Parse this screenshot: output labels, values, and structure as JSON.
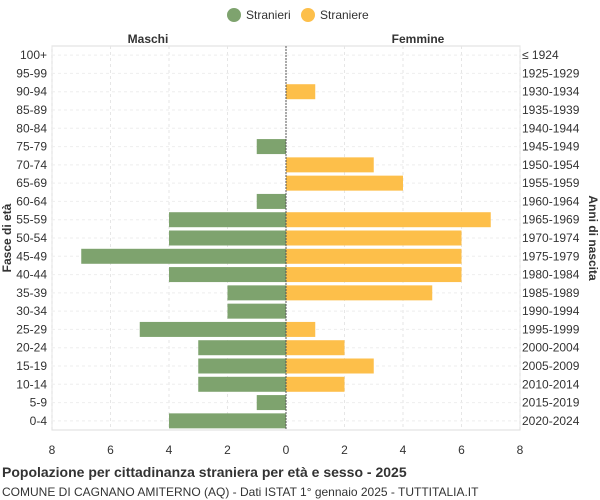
{
  "chart_data": {
    "type": "bar",
    "orientation": "horizontal-population-pyramid",
    "categories": [
      "100+",
      "95-99",
      "90-94",
      "85-89",
      "80-84",
      "75-79",
      "70-74",
      "65-69",
      "60-64",
      "55-59",
      "50-54",
      "45-49",
      "40-44",
      "35-39",
      "30-34",
      "25-29",
      "20-24",
      "15-19",
      "10-14",
      "5-9",
      "0-4"
    ],
    "birth_years": [
      "≤ 1924",
      "1925-1929",
      "1930-1934",
      "1935-1939",
      "1940-1944",
      "1945-1949",
      "1950-1954",
      "1955-1959",
      "1960-1964",
      "1965-1969",
      "1970-1974",
      "1975-1979",
      "1980-1984",
      "1985-1989",
      "1990-1994",
      "1995-1999",
      "2000-2004",
      "2005-2009",
      "2010-2014",
      "2015-2019",
      "2020-2024"
    ],
    "series": [
      {
        "name": "Stranieri",
        "side": "left",
        "color": "#7ea36e",
        "values": [
          0,
          0,
          0,
          0,
          0,
          1,
          0,
          0,
          1,
          4,
          4,
          7,
          4,
          2,
          2,
          5,
          3,
          3,
          3,
          1,
          4
        ]
      },
      {
        "name": "Straniere",
        "side": "right",
        "color": "#fdbf4a",
        "values": [
          0,
          0,
          1,
          0,
          0,
          0,
          3,
          4,
          0,
          7,
          6,
          6,
          6,
          5,
          0,
          1,
          2,
          3,
          2,
          0,
          0
        ]
      }
    ],
    "xlim": [
      -8,
      8
    ],
    "x_ticks": [
      "8",
      "6",
      "4",
      "2",
      "0",
      "2",
      "4",
      "6",
      "8"
    ],
    "left_header": "Maschi",
    "right_header": "Femmine",
    "ylabel_left": "Fasce di età",
    "ylabel_right": "Anni di nascita",
    "grid": true,
    "legend_position": "top-center",
    "title": "Popolazione per cittadinanza straniera per età e sesso - 2025",
    "subtitle": "COMUNE DI CAGNANO AMITERNO (AQ) - Dati ISTAT 1° gennaio 2025 - TUTTITALIA.IT"
  }
}
